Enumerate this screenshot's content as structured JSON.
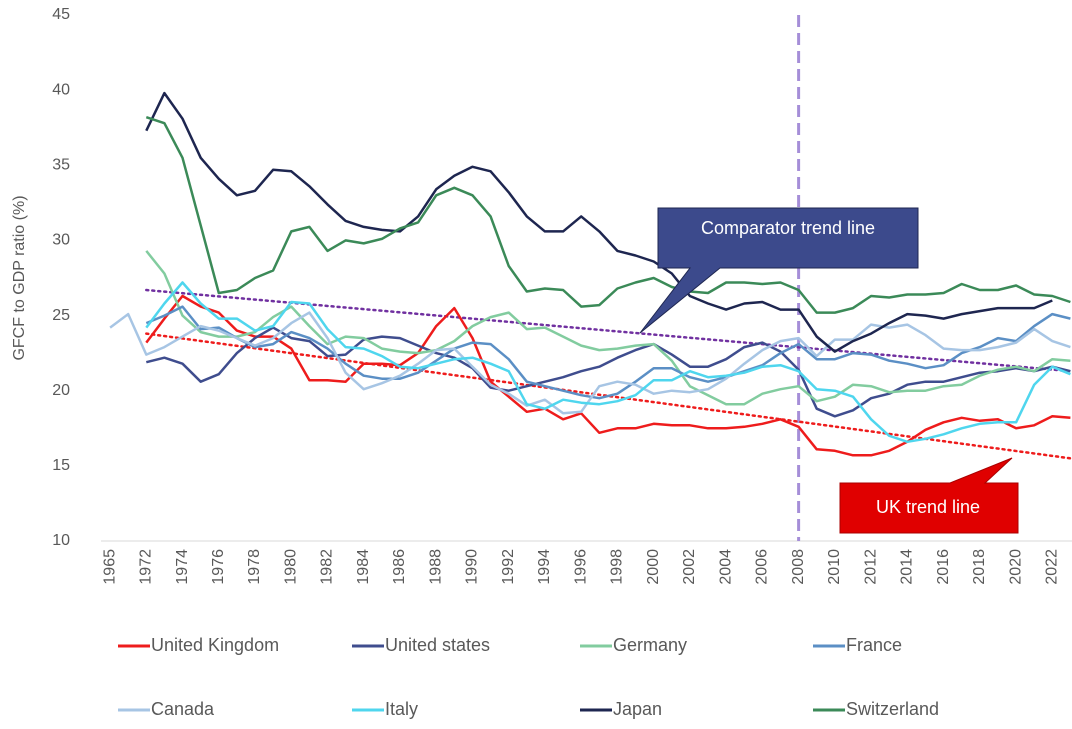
{
  "chart_data": {
    "type": "line",
    "y_axis_label": "GFCF to GDP ratio (%)",
    "categories": [
      "1965",
      null,
      "1972",
      null,
      "1974",
      null,
      "1976",
      null,
      "1978",
      null,
      "1980",
      null,
      "1982",
      null,
      "1984",
      null,
      "1986",
      null,
      "1988",
      null,
      "1990",
      null,
      "1992",
      null,
      "1994",
      null,
      "1996",
      null,
      "1998",
      null,
      "2000",
      null,
      "2002",
      null,
      "2004",
      null,
      "2006",
      null,
      "2008",
      null,
      "2010",
      null,
      "2012",
      null,
      "2014",
      null,
      "2016",
      null,
      "2018",
      null,
      "2020",
      null,
      "2022",
      null
    ],
    "ylim": [
      10,
      45
    ],
    "yticks": [
      10,
      15,
      20,
      25,
      30,
      35,
      40,
      45
    ],
    "grid": false,
    "series": [
      {
        "name": "United Kingdom",
        "color": "#ee1c1c",
        "values": [
          null,
          null,
          23.2,
          24.8,
          26.3,
          25.6,
          25.2,
          24.0,
          23.6,
          23.6,
          22.8,
          20.7,
          20.7,
          20.6,
          21.8,
          21.8,
          21.7,
          22.5,
          24.3,
          25.5,
          23.5,
          20.6,
          19.6,
          18.6,
          18.8,
          18.1,
          18.5,
          17.2,
          17.5,
          17.5,
          17.8,
          17.7,
          17.7,
          17.5,
          17.5,
          17.6,
          17.8,
          18.1,
          17.6,
          16.1,
          16.0,
          15.7,
          15.7,
          16.0,
          16.6,
          17.4,
          17.9,
          18.2,
          18.0,
          18.1,
          17.5,
          17.7,
          18.3,
          18.2
        ]
      },
      {
        "name": "United states",
        "color": "#3f4d8e",
        "values": [
          null,
          null,
          21.9,
          22.2,
          21.8,
          20.6,
          21.1,
          22.5,
          23.5,
          24.2,
          23.5,
          23.3,
          22.3,
          22.4,
          23.4,
          23.6,
          23.5,
          23.0,
          22.5,
          22.2,
          21.5,
          20.2,
          20.0,
          20.3,
          20.6,
          20.9,
          21.3,
          21.6,
          22.2,
          22.7,
          23.1,
          22.4,
          21.6,
          21.6,
          22.1,
          22.9,
          23.2,
          22.6,
          21.4,
          18.8,
          18.3,
          18.7,
          19.5,
          19.8,
          20.4,
          20.6,
          20.6,
          20.9,
          21.2,
          21.3,
          21.5,
          21.3,
          21.6,
          21.3
        ]
      },
      {
        "name": "Germany",
        "color": "#82cc9f",
        "values": [
          null,
          null,
          29.3,
          27.8,
          25.0,
          23.9,
          23.6,
          23.6,
          23.9,
          24.9,
          25.6,
          24.3,
          23.1,
          23.6,
          23.5,
          22.8,
          22.6,
          22.5,
          22.7,
          23.3,
          24.3,
          24.9,
          25.2,
          24.1,
          24.2,
          23.6,
          23.0,
          22.7,
          22.8,
          23.0,
          23.1,
          22.0,
          20.3,
          19.7,
          19.1,
          19.1,
          19.8,
          20.1,
          20.3,
          19.3,
          19.6,
          20.4,
          20.3,
          19.9,
          20.0,
          20.0,
          20.3,
          20.4,
          21.0,
          21.4,
          21.6,
          21.3,
          22.1,
          22.0
        ]
      },
      {
        "name": "France",
        "color": "#5b8fc5",
        "values": [
          null,
          null,
          24.5,
          25.0,
          25.6,
          24.1,
          24.2,
          23.5,
          22.9,
          23.1,
          23.9,
          23.5,
          22.8,
          21.8,
          21.0,
          20.8,
          20.8,
          21.2,
          22.0,
          22.8,
          23.2,
          23.1,
          22.1,
          20.6,
          20.3,
          20.0,
          19.7,
          19.5,
          19.8,
          20.6,
          21.5,
          21.5,
          20.9,
          20.6,
          20.9,
          21.3,
          21.7,
          22.5,
          23.1,
          22.1,
          22.1,
          22.5,
          22.4,
          22.0,
          21.8,
          21.5,
          21.7,
          22.5,
          22.9,
          23.5,
          23.3,
          24.3,
          25.1,
          24.8
        ]
      },
      {
        "name": "Canada",
        "color": "#a7c5e4",
        "values": [
          24.2,
          25.1,
          22.4,
          22.9,
          23.6,
          24.3,
          24.0,
          23.5,
          23.0,
          23.5,
          24.5,
          25.2,
          23.5,
          21.2,
          20.1,
          20.5,
          21.0,
          21.8,
          22.7,
          22.8,
          21.6,
          20.4,
          19.8,
          19.0,
          19.4,
          18.5,
          18.6,
          20.3,
          20.6,
          20.4,
          19.8,
          20.0,
          19.9,
          20.1,
          20.8,
          21.8,
          22.7,
          23.3,
          23.5,
          22.3,
          23.4,
          23.4,
          24.4,
          24.2,
          24.4,
          23.7,
          22.8,
          22.7,
          22.7,
          22.9,
          23.2,
          24.1,
          23.3,
          22.9
        ]
      },
      {
        "name": "Italy",
        "color": "#4fd6ee",
        "values": [
          null,
          null,
          24.2,
          25.8,
          27.2,
          25.8,
          24.8,
          24.8,
          24.0,
          24.3,
          25.9,
          25.8,
          24.1,
          22.9,
          22.8,
          22.3,
          21.6,
          21.5,
          21.8,
          22.1,
          22.2,
          21.8,
          21.3,
          19.1,
          18.8,
          19.4,
          19.2,
          19.1,
          19.3,
          19.7,
          20.7,
          20.7,
          21.3,
          20.9,
          21.0,
          21.2,
          21.6,
          21.7,
          21.3,
          20.1,
          20.0,
          19.6,
          18.1,
          17.0,
          16.6,
          16.8,
          17.1,
          17.5,
          17.8,
          17.9,
          17.9,
          20.4,
          21.6,
          21.1
        ]
      },
      {
        "name": "Japan",
        "color": "#1e2650",
        "values": [
          null,
          null,
          37.3,
          39.8,
          38.1,
          35.5,
          34.1,
          33.0,
          33.3,
          34.7,
          34.6,
          33.6,
          32.4,
          31.3,
          30.9,
          30.7,
          30.6,
          31.6,
          33.4,
          34.3,
          34.9,
          34.6,
          33.2,
          31.6,
          30.6,
          30.6,
          31.6,
          30.6,
          29.3,
          29.0,
          28.6,
          27.8,
          26.3,
          25.8,
          25.4,
          25.8,
          25.9,
          25.4,
          25.4,
          23.6,
          22.6,
          23.3,
          23.8,
          24.5,
          25.1,
          25.0,
          24.8,
          25.1,
          25.3,
          25.5,
          25.5,
          25.5,
          26.0,
          null
        ]
      },
      {
        "name": "Switzerland",
        "color": "#3b8a58",
        "values": [
          null,
          null,
          38.2,
          37.8,
          35.5,
          31.0,
          26.5,
          26.7,
          27.5,
          28.0,
          30.6,
          30.9,
          29.3,
          30.0,
          29.8,
          30.1,
          30.8,
          31.2,
          33.0,
          33.5,
          33.0,
          31.6,
          28.3,
          26.6,
          26.8,
          26.7,
          25.6,
          25.7,
          26.8,
          27.2,
          27.5,
          26.9,
          26.6,
          26.5,
          27.2,
          27.2,
          27.1,
          27.2,
          26.7,
          25.2,
          25.2,
          25.5,
          26.3,
          26.2,
          26.4,
          26.4,
          26.5,
          27.1,
          26.7,
          26.7,
          27.0,
          26.4,
          26.3,
          25.9
        ]
      }
    ],
    "trend_lines": [
      {
        "color": "#7030a0",
        "values": [
          26.7,
          21.3
        ]
      },
      {
        "color": "#ee1c1c",
        "values": [
          23.8,
          15.5
        ]
      }
    ],
    "vline_category": "2008",
    "vline_color": "#a58ed8",
    "annotations": [
      {
        "text": "Comparator trend line"
      },
      {
        "text": "UK trend line"
      }
    ]
  }
}
